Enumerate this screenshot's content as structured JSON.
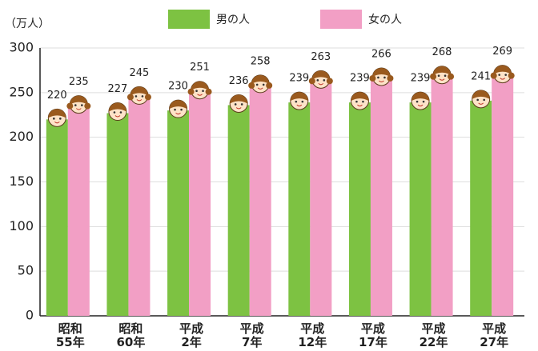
{
  "chart_data": {
    "type": "bar",
    "unit_label": "（万人）",
    "categories": [
      "昭和\n55年",
      "昭和\n60年",
      "平成\n2年",
      "平成\n7年",
      "平成\n12年",
      "平成\n17年",
      "平成\n22年",
      "平成\n27年"
    ],
    "series": [
      {
        "name": "男の人",
        "color": "#7dc242",
        "values": [
          220,
          227,
          230,
          236,
          239,
          239,
          239,
          241
        ]
      },
      {
        "name": "女の人",
        "color": "#f29fc5",
        "values": [
          235,
          245,
          251,
          258,
          263,
          266,
          268,
          269
        ]
      }
    ],
    "ylim": [
      0,
      300
    ],
    "yticks": [
      0,
      50,
      100,
      150,
      200,
      250,
      300
    ],
    "grid": true
  }
}
